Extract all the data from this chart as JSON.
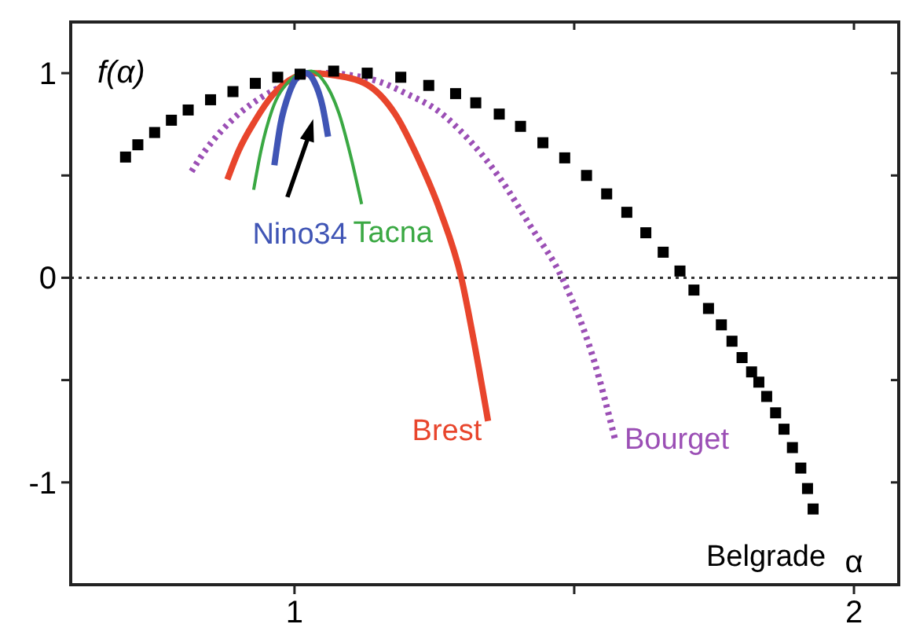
{
  "chart_data": {
    "type": "line",
    "xlabel": "α",
    "ylabel": "f(α)",
    "xlim": [
      0.6,
      2.08
    ],
    "ylim": [
      -1.5,
      1.25
    ],
    "xticks": [
      1,
      {
        "value": 1.5,
        "label": null
      },
      2
    ],
    "yticks": [
      -1,
      {
        "value": -0.5,
        "label": null
      },
      0,
      {
        "value": 0.5,
        "label": null
      },
      1
    ],
    "grid": false,
    "ref_lines": [
      {
        "axis": "y",
        "value": 0,
        "color": "#333333",
        "line_style": "dotted"
      }
    ],
    "series": [
      {
        "name": "Belgrade",
        "type": "scatter",
        "marker": "square",
        "color": "#000000",
        "x": [
          0.698,
          0.72,
          0.75,
          0.78,
          0.81,
          0.85,
          0.89,
          0.93,
          0.97,
          1.01,
          1.07,
          1.13,
          1.19,
          1.24,
          1.288,
          1.324,
          1.366,
          1.404,
          1.444,
          1.483,
          1.522,
          1.558,
          1.594,
          1.628,
          1.659,
          1.689,
          1.714,
          1.74,
          1.763,
          1.782,
          1.8,
          1.817,
          1.83,
          1.844,
          1.86,
          1.875,
          1.89,
          1.905,
          1.917,
          1.927
        ],
        "values": [
          0.59,
          0.65,
          0.71,
          0.77,
          0.82,
          0.87,
          0.91,
          0.95,
          0.98,
          0.995,
          1.01,
          1.0,
          0.98,
          0.94,
          0.9,
          0.855,
          0.8,
          0.74,
          0.66,
          0.586,
          0.5,
          0.41,
          0.32,
          0.22,
          0.125,
          0.033,
          -0.06,
          -0.15,
          -0.23,
          -0.31,
          -0.39,
          -0.46,
          -0.51,
          -0.58,
          -0.66,
          -0.74,
          -0.83,
          -0.93,
          -1.03,
          -1.13
        ]
      },
      {
        "name": "Bourget",
        "color": "#9b4fb5",
        "line_style": "dotted",
        "x": [
          0.816,
          0.84,
          0.87,
          0.9,
          0.94,
          0.98,
          1.02,
          1.06,
          1.1,
          1.15,
          1.2,
          1.257,
          1.31,
          1.369,
          1.42,
          1.48,
          1.536,
          1.573
        ],
        "values": [
          0.52,
          0.62,
          0.72,
          0.8,
          0.88,
          0.94,
          0.99,
          1.0,
          0.99,
          0.96,
          0.9,
          0.815,
          0.68,
          0.48,
          0.26,
          -0.01,
          -0.41,
          -0.79
        ]
      },
      {
        "name": "Brest",
        "color": "#e8452c",
        "x": [
          0.88,
          0.9,
          0.93,
          0.96,
          1.0,
          1.03,
          1.07,
          1.126,
          1.18,
          1.22,
          1.26,
          1.299,
          1.32,
          1.346
        ],
        "values": [
          0.48,
          0.62,
          0.77,
          0.89,
          0.98,
          1.0,
          0.99,
          0.95,
          0.8,
          0.59,
          0.33,
          -0.01,
          -0.3,
          -0.7
        ]
      },
      {
        "name": "Tacna",
        "color": "#3aa843",
        "x": [
          0.927,
          0.94,
          0.96,
          0.99,
          1.01,
          1.03,
          1.05,
          1.08,
          1.1,
          1.12
        ],
        "values": [
          0.43,
          0.62,
          0.82,
          0.96,
          1.0,
          1.01,
          0.97,
          0.8,
          0.6,
          0.36
        ]
      },
      {
        "name": "Nino34",
        "color": "#4055b5",
        "x": [
          0.964,
          0.975,
          0.99,
          1.005,
          1.02,
          1.035,
          1.05,
          1.06
        ],
        "values": [
          0.55,
          0.75,
          0.9,
          0.98,
          1.0,
          0.96,
          0.84,
          0.69
        ]
      }
    ]
  }
}
